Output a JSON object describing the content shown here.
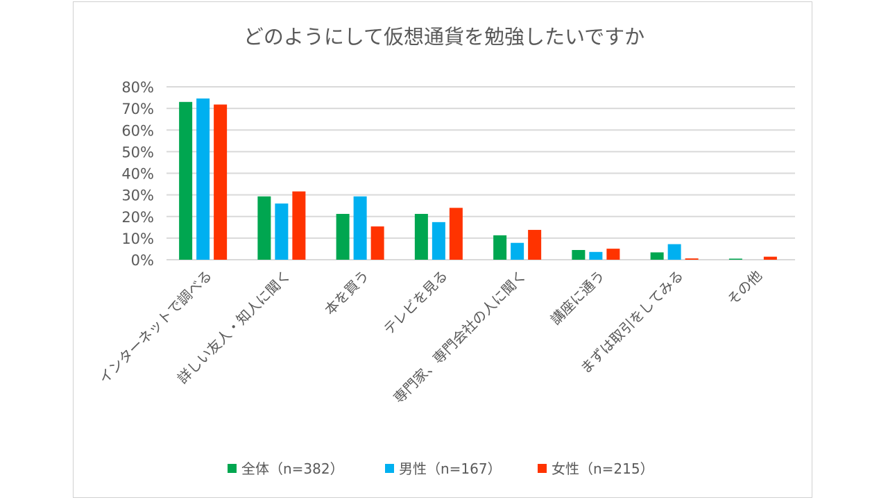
{
  "chart_data": {
    "type": "bar",
    "title": "どのようにして仮想通貨を勉強したいですか",
    "categories": [
      "インターネットで調べる",
      "詳しい友人・知人に聞く",
      "本を買う",
      "テレビを見る",
      "専門家、専門会社の人に聞く",
      "講座に通う",
      "まずは取引をしてみる",
      "その他"
    ],
    "series": [
      {
        "name": "全体（n=382）",
        "color": "#00a650",
        "values": [
          73.0,
          29.3,
          21.2,
          21.2,
          11.3,
          4.5,
          3.4,
          0.5
        ]
      },
      {
        "name": "男性（n=167）",
        "color": "#00b0f0",
        "values": [
          74.6,
          26.0,
          29.3,
          17.4,
          7.8,
          3.6,
          7.2,
          0.0
        ]
      },
      {
        "name": "女性（n=215）",
        "color": "#ff3300",
        "values": [
          71.8,
          31.6,
          15.4,
          24.0,
          13.8,
          5.1,
          0.6,
          1.4
        ]
      }
    ],
    "yticks": [
      "0%",
      "10%",
      "20%",
      "30%",
      "40%",
      "50%",
      "60%",
      "70%",
      "80%"
    ],
    "ylim": [
      0,
      80
    ],
    "yunit": "%",
    "grid": true,
    "legend": "bottom"
  }
}
